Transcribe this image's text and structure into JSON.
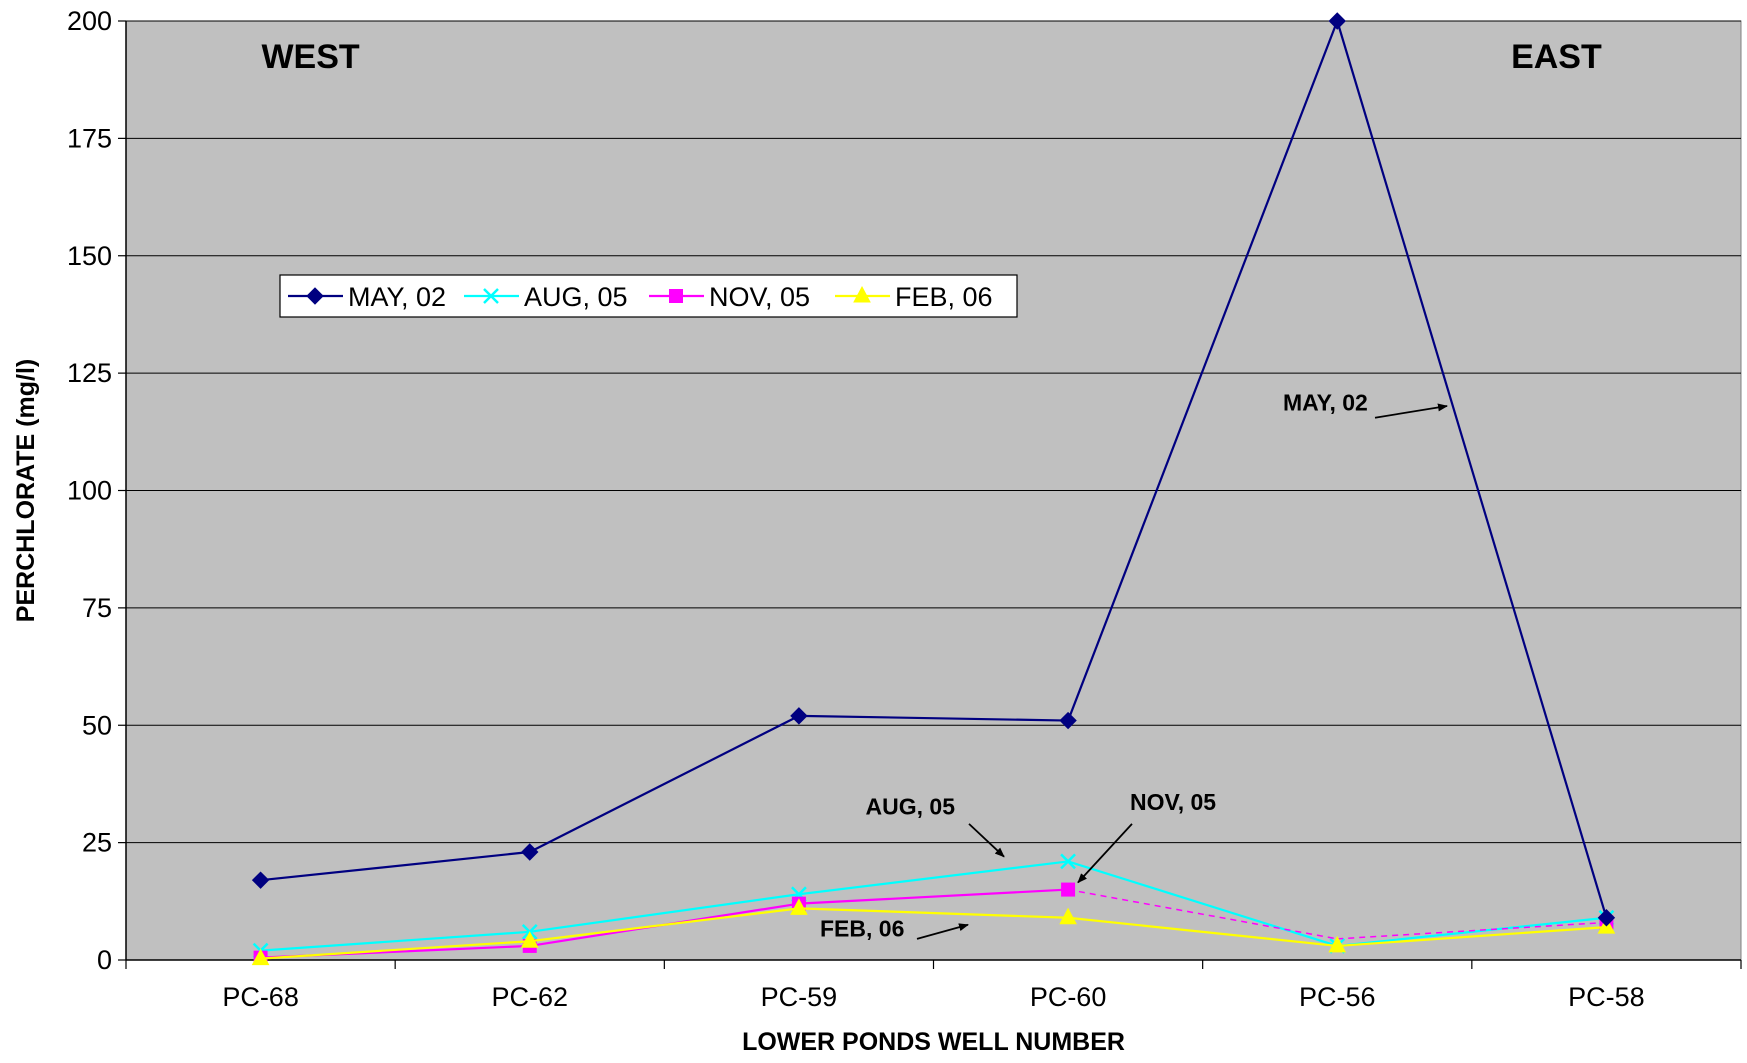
{
  "chart_data": {
    "type": "line",
    "xlabel": "LOWER PONDS WELL NUMBER",
    "ylabel": "PERCHLORATE (mg/l)",
    "categories": [
      "PC-68",
      "PC-62",
      "PC-59",
      "PC-60",
      "PC-56",
      "PC-58"
    ],
    "ylim": [
      0,
      200
    ],
    "yticks": [
      0,
      25,
      50,
      75,
      100,
      125,
      150,
      175,
      200
    ],
    "grid": true,
    "legend_position": "upper-left",
    "series": [
      {
        "name": "MAY, 02",
        "values": [
          17,
          23,
          52,
          51,
          200,
          9
        ],
        "color": "#000080",
        "marker": "diamond"
      },
      {
        "name": "AUG, 05",
        "values": [
          2,
          6,
          14,
          21,
          3,
          9
        ],
        "color": "#00FFFF",
        "marker": "x"
      },
      {
        "name": "NOV, 05",
        "values": [
          0.5,
          3,
          12,
          15,
          4.5,
          8
        ],
        "color": "#FF00FF",
        "marker": "square",
        "dashed_from_index": 3,
        "marker_indices": [
          0,
          1,
          2,
          3,
          5
        ]
      },
      {
        "name": "FEB, 06",
        "values": [
          0.3,
          4,
          11,
          9,
          3,
          7
        ],
        "color": "#FFFF00",
        "marker": "triangle"
      }
    ],
    "region_labels": {
      "west": "WEST",
      "east": "EAST"
    },
    "annotations": [
      "MAY, 02",
      "AUG, 05",
      "NOV, 05",
      "FEB, 06"
    ]
  },
  "colors": {
    "plot_background": "#C0C0C0",
    "gridline": "#000000"
  }
}
